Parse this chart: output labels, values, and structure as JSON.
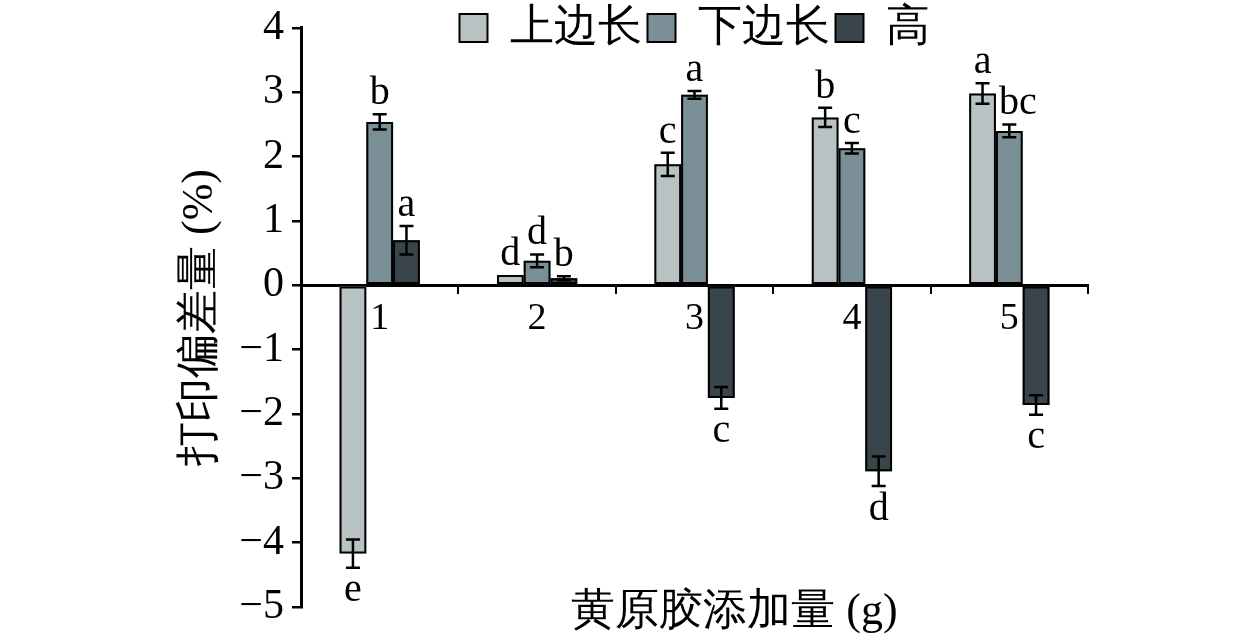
{
  "chart_data": {
    "type": "bar",
    "xlabel": "黄原胶添加量 (g)",
    "ylabel": "打印偏差量 (%)",
    "categories": [
      "1",
      "2",
      "3",
      "4",
      "5"
    ],
    "series": [
      {
        "name": "上边长",
        "color": "#b9c2c2",
        "values": [
          -4.17,
          0.16,
          1.88,
          2.61,
          2.98
        ],
        "errors": [
          0.22,
          null,
          0.18,
          0.15,
          0.16
        ],
        "value_labels": [
          "e",
          "d",
          "c",
          "b",
          "a"
        ]
      },
      {
        "name": "下边长",
        "color": "#7b8f96",
        "values": [
          2.54,
          0.38,
          2.96,
          2.13,
          2.4
        ],
        "errors": [
          0.12,
          0.1,
          0.06,
          0.08,
          0.1
        ],
        "value_labels": [
          "b",
          "d",
          "a",
          "c",
          "bc"
        ]
      },
      {
        "name": "高",
        "color": "#3a454b",
        "values": [
          0.7,
          0.11,
          -1.75,
          -2.89,
          -1.86
        ],
        "errors": [
          0.22,
          0.03,
          0.17,
          0.23,
          0.15
        ],
        "value_labels": [
          "a",
          "b",
          "c",
          "d",
          "c"
        ]
      }
    ],
    "ylim": [
      -5,
      4
    ],
    "yticks": [
      {
        "value": -5,
        "label": "−5"
      },
      {
        "value": -4,
        "label": "−4"
      },
      {
        "value": -3,
        "label": "−3"
      },
      {
        "value": -2,
        "label": "−2"
      },
      {
        "value": -1,
        "label": "−1"
      },
      0,
      1,
      2,
      3,
      4
    ],
    "legend": "top"
  }
}
